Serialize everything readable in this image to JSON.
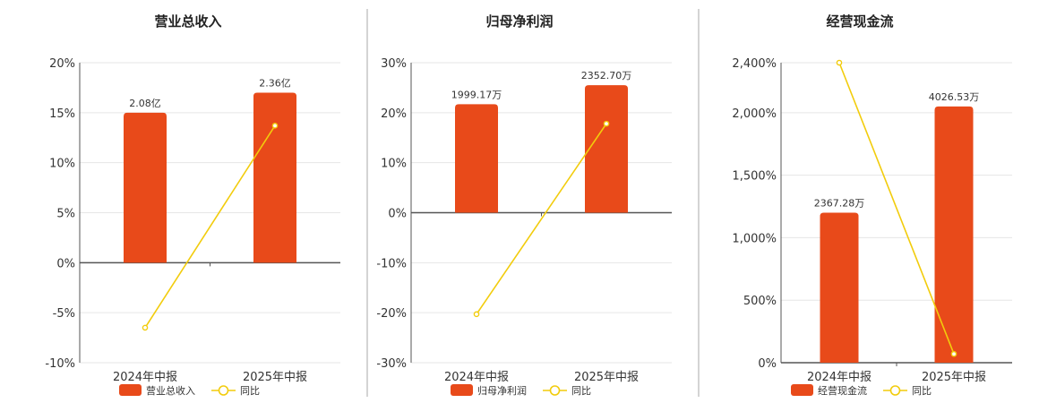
{
  "colors": {
    "bar": "#E84A1A",
    "line": "#F2CC0C",
    "grid": "#e6e6e6",
    "axis": "#555555",
    "divider": "#aaaaaa"
  },
  "chart_data": [
    {
      "type": "bar",
      "title": "营业总收入",
      "categories": [
        "2024年中报",
        "2025年中报"
      ],
      "series": [
        {
          "name": "营业总收入",
          "type": "bar",
          "values": [
            2.08,
            2.36
          ],
          "data_labels": [
            "2.08亿",
            "2.36亿"
          ],
          "percent_axis_values": [
            15.0,
            17.0
          ]
        },
        {
          "name": "同比",
          "type": "line",
          "values": [
            -6.5,
            13.7
          ]
        }
      ],
      "ylim": [
        -10,
        20
      ],
      "yticks": [
        20,
        15,
        10,
        5,
        0,
        -5,
        -10
      ],
      "ytick_labels": [
        "20%",
        "15%",
        "10%",
        "5%",
        "0%",
        "-5%",
        "-10%"
      ],
      "grid": true,
      "legend": "bottom-center"
    },
    {
      "type": "bar",
      "title": "归母净利润",
      "categories": [
        "2024年中报",
        "2025年中报"
      ],
      "series": [
        {
          "name": "归母净利润",
          "type": "bar",
          "values": [
            1999.17,
            2352.7
          ],
          "data_labels": [
            "1999.17万",
            "2352.70万"
          ],
          "percent_axis_values": [
            21.7,
            25.5
          ]
        },
        {
          "name": "同比",
          "type": "line",
          "values": [
            -20.3,
            17.8
          ]
        }
      ],
      "ylim": [
        -30,
        30
      ],
      "yticks": [
        30,
        20,
        10,
        0,
        -10,
        -20,
        -30
      ],
      "ytick_labels": [
        "30%",
        "20%",
        "10%",
        "0%",
        "-10%",
        "-20%",
        "-30%"
      ],
      "grid": true,
      "legend": "bottom-center"
    },
    {
      "type": "bar",
      "title": "经营现金流",
      "categories": [
        "2024年中报",
        "2025年中报"
      ],
      "series": [
        {
          "name": "经营现金流",
          "type": "bar",
          "values": [
            2367.28,
            4026.53
          ],
          "data_labels": [
            "2367.28万",
            "4026.53万"
          ],
          "percent_axis_values": [
            1200,
            2050
          ]
        },
        {
          "name": "同比",
          "type": "line",
          "values": [
            2400,
            70
          ]
        }
      ],
      "ylim": [
        0,
        2400
      ],
      "yticks": [
        2400,
        2000,
        1500,
        1000,
        500,
        0
      ],
      "ytick_labels": [
        "2,400%",
        "2,000%",
        "1,500%",
        "1,000%",
        "500%",
        "0%"
      ],
      "grid": true,
      "legend": "bottom-center"
    }
  ]
}
